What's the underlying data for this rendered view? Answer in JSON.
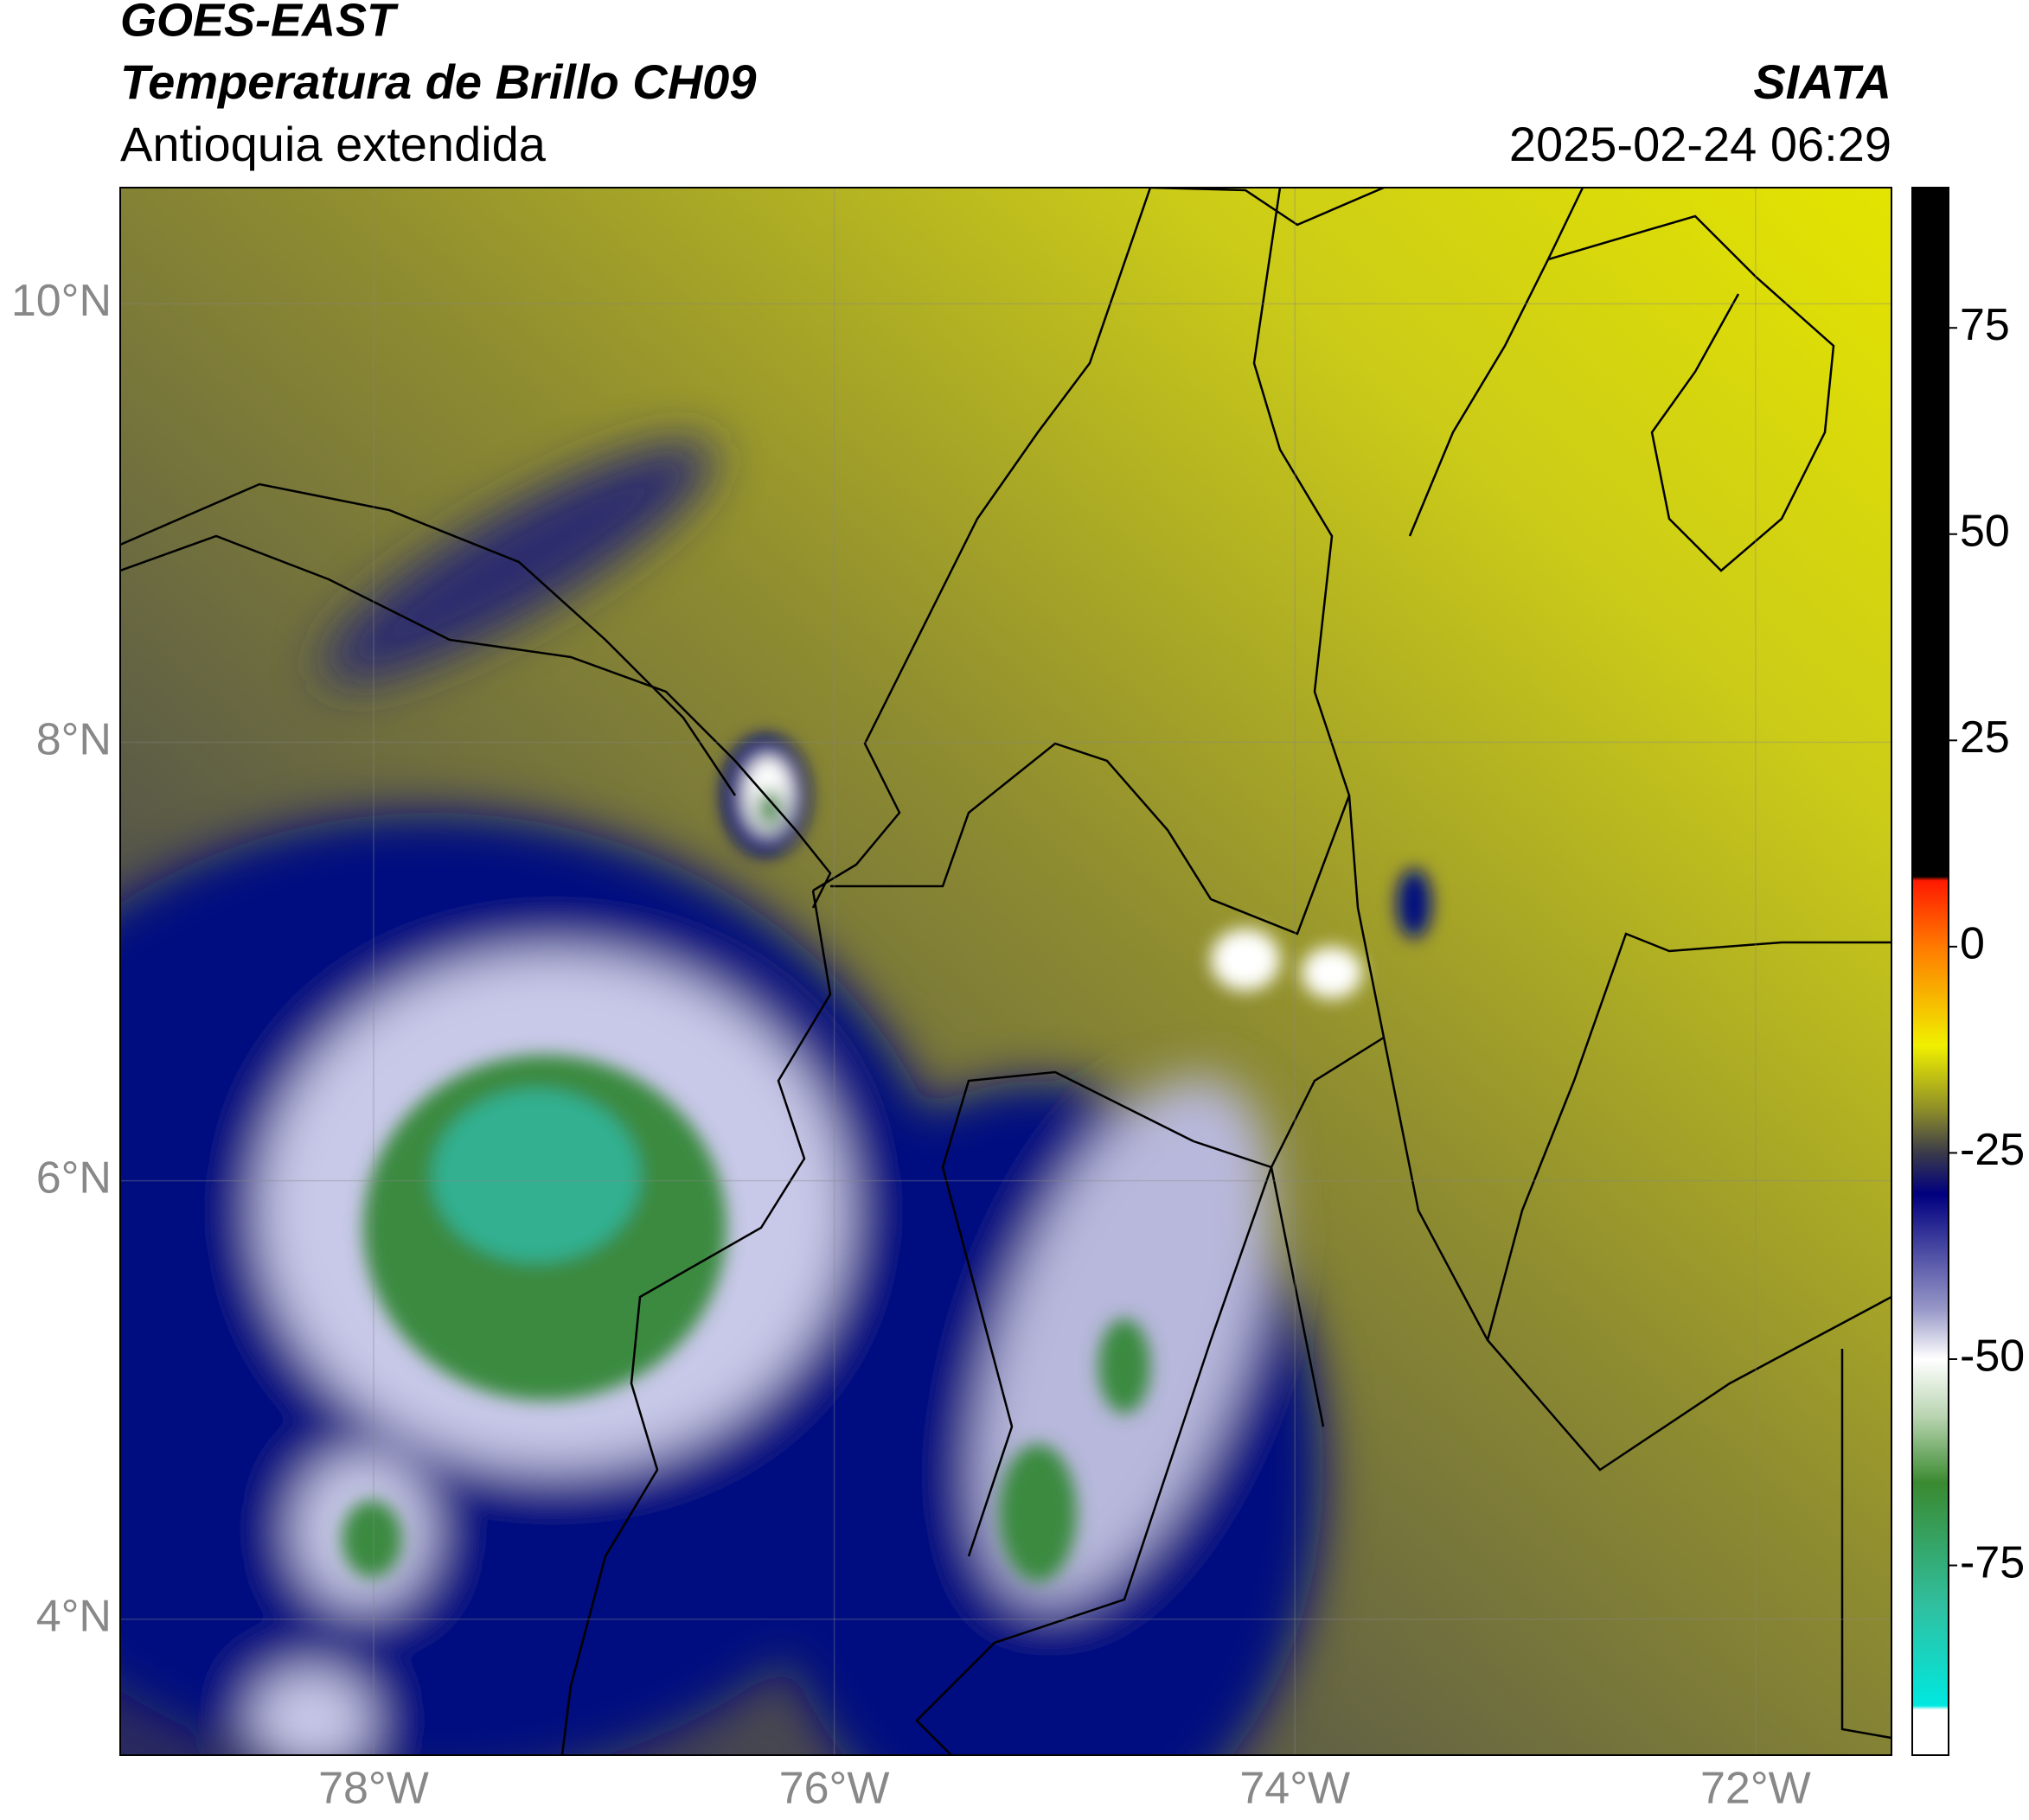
{
  "header": {
    "title": "GOES-EAST",
    "subtitle": "Temperatura de Brillo CH09",
    "region": "Antioquia extendida",
    "source": "SIATA",
    "datetime": "2025-02-24 06:29"
  },
  "map": {
    "extent": [
      -79.1,
      -71.41,
      3.38,
      10.53
    ],
    "lon_ticks": [
      {
        "value": -78,
        "label": "78°W"
      },
      {
        "value": -76,
        "label": "76°W"
      },
      {
        "value": -74,
        "label": "74°W"
      },
      {
        "value": -72,
        "label": "72°W"
      }
    ],
    "lat_ticks": [
      {
        "value": 10,
        "label": "10°N"
      },
      {
        "value": 8,
        "label": "8°N"
      },
      {
        "value": 6,
        "label": "6°N"
      },
      {
        "value": 4,
        "label": "4°N"
      }
    ]
  },
  "colorbar": {
    "range": [
      -98,
      92
    ],
    "ticks": [
      75,
      50,
      25,
      0,
      -25,
      -50,
      -75
    ],
    "stops": [
      {
        "value": 92,
        "color": "#000000"
      },
      {
        "value": 8.5,
        "color": "#000000"
      },
      {
        "value": 8,
        "color": "#ff1a00"
      },
      {
        "value": 0,
        "color": "#ff7a00"
      },
      {
        "value": -12,
        "color": "#f0f000"
      },
      {
        "value": -20,
        "color": "#8a8a2a"
      },
      {
        "value": -25,
        "color": "#3a3a4a"
      },
      {
        "value": -30,
        "color": "#000080"
      },
      {
        "value": -44,
        "color": "#9898c8"
      },
      {
        "value": -50,
        "color": "#ffffff"
      },
      {
        "value": -57,
        "color": "#b8d4b0"
      },
      {
        "value": -65,
        "color": "#3a8a30"
      },
      {
        "value": -80,
        "color": "#30c0a0"
      },
      {
        "value": -92,
        "color": "#00e8e0"
      },
      {
        "value": -92.5,
        "color": "#ffffff"
      },
      {
        "value": -98,
        "color": "#ffffff"
      }
    ]
  }
}
